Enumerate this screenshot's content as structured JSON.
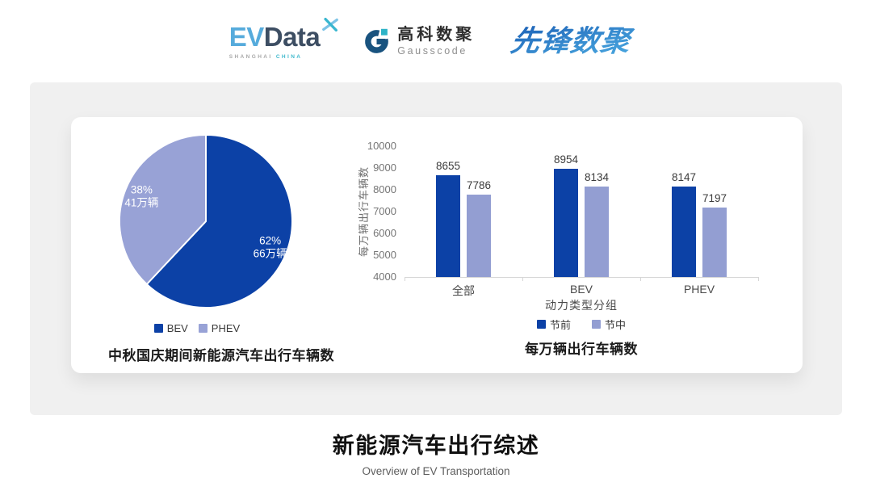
{
  "header": {
    "evdata": {
      "ev": "EV",
      "data": "Data",
      "sub_left": "SHANGHAI",
      "sub_right": "CHINA"
    },
    "gausscode": {
      "cn": "高科数聚",
      "en": "Gausscode"
    },
    "pioneer": {
      "text": "先锋数聚"
    }
  },
  "chart_data": [
    {
      "type": "pie",
      "title": "中秋国庆期间新能源汽车出行车辆数",
      "legend_position": "bottom",
      "start_angle_deg": 0,
      "direction": "clockwise",
      "slices": [
        {
          "label": "BEV",
          "percent": 62,
          "count": "66万辆",
          "color": "#0c41a6"
        },
        {
          "label": "PHEV",
          "percent": 38,
          "count": "41万辆",
          "color": "#98a2d6"
        }
      ]
    },
    {
      "type": "bar",
      "title": "每万辆出行车辆数",
      "xlabel": "动力类型分组",
      "ylabel": "每万辆出行车辆数",
      "categories": [
        "全部",
        "BEV",
        "PHEV"
      ],
      "series": [
        {
          "name": "节前",
          "color": "#0c41a6",
          "values": [
            8655,
            8954,
            8147
          ]
        },
        {
          "name": "节中",
          "color": "#939ed2",
          "values": [
            7786,
            8134,
            7197
          ]
        }
      ],
      "ylim": [
        4000,
        10000
      ],
      "ytick_step": 1000,
      "grid": false,
      "legend_position": "bottom"
    }
  ],
  "footer": {
    "title": "新能源汽车出行综述",
    "subtitle": "Overview of EV Transportation"
  },
  "colors": {
    "panel_gray": "#f0f0f0",
    "primary_dark_blue": "#0c41a6",
    "light_periwinkle": "#98a2d6",
    "evdata_blue": "#56abdc",
    "evdata_dark": "#3d4e63",
    "teal": "#3fb9cd",
    "gauss_navy": "#19537f",
    "pioneer_grad_start": "#1b5fb5",
    "pioneer_grad_end": "#4aa8e0"
  }
}
